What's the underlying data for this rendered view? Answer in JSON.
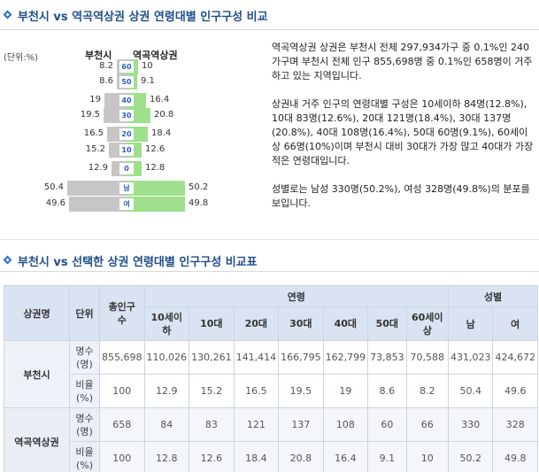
{
  "section1": {
    "title": "부천시 vs 역곡역상권 상권 연령대별 인구구성 비교"
  },
  "pyramid": {
    "unit": "(단위:%)",
    "left_header": "부천시",
    "right_header": "역곡역상권",
    "rows": [
      {
        "age": "60",
        "left": "8.2",
        "right": "10",
        "left_pct": 8.2,
        "right_pct": 10
      },
      {
        "age": "50",
        "left": "8.6",
        "right": "9.1",
        "left_pct": 8.6,
        "right_pct": 9.1
      },
      {
        "age": "40",
        "left": "19",
        "right": "16.4",
        "left_pct": 19,
        "right_pct": 16.4
      },
      {
        "age": "30",
        "left": "19.5",
        "right": "20.8",
        "left_pct": 19.5,
        "right_pct": 20.8
      },
      {
        "age": "20",
        "left": "16.5",
        "right": "18.4",
        "left_pct": 16.5,
        "right_pct": 18.4
      },
      {
        "age": "10",
        "left": "15.2",
        "right": "12.6",
        "left_pct": 15.2,
        "right_pct": 12.6
      },
      {
        "age": "0",
        "left": "12.9",
        "right": "12.8",
        "left_pct": 12.9,
        "right_pct": 12.8
      },
      {
        "age": "남",
        "left": "50.4",
        "right": "50.2",
        "left_pct": 50.4,
        "right_pct": 50.2
      },
      {
        "age": "여",
        "left": "49.6",
        "right": "49.8",
        "left_pct": 49.6,
        "right_pct": 49.8
      }
    ]
  },
  "description": {
    "p1": "역곡역상권 상권은 부천시 전체 297,934가구 중 0.1%인 240가구며 부천시 전체 인구 855,698명 중 0.1%인 658명이 거주하고 있는 지역입니다.",
    "p2": "상권내 거주 인구의 연령대별 구성은 10세이하 84명(12.8%), 10대 83명(12.6%), 20대 121명(18.4%), 30대 137명(20.8%), 40대 108명(16.4%), 50대 60명(9.1%), 60세이상 66명(10%)이며 부천시 대비 30대가 가장 많고 40대가 가장 적은 연령대입니다.",
    "p3": "성별로는 남성 330명(50.2%), 여성 328명(49.8%)의 분포를 보입니다."
  },
  "section2": {
    "title": "부천시 vs 선택한 상권 연령대별 인구구성 비교표"
  },
  "table": {
    "h_area": "상권명",
    "h_unit": "단위",
    "h_total": "총인구수",
    "h_age": "연령",
    "h_gender": "성별",
    "age_cols": [
      "10세이하",
      "10대",
      "20대",
      "30대",
      "40대",
      "50대",
      "60세이상"
    ],
    "gender_cols": [
      "남",
      "여"
    ],
    "rows": [
      {
        "area": "부천시",
        "unit": "명수(명)",
        "values": [
          "855,698",
          "110,026",
          "130,261",
          "141,414",
          "166,795",
          "162,799",
          "73,853",
          "70,588",
          "431,023",
          "424,672"
        ]
      },
      {
        "area": "",
        "unit": "비율(%)",
        "values": [
          "100",
          "12.9",
          "15.2",
          "16.5",
          "19.5",
          "19",
          "8.6",
          "8.2",
          "50.4",
          "49.6"
        ]
      },
      {
        "area": "역곡역상권",
        "unit": "명수(명)",
        "values": [
          "658",
          "84",
          "83",
          "121",
          "137",
          "108",
          "60",
          "66",
          "330",
          "328"
        ]
      },
      {
        "area": "",
        "unit": "비율(%)",
        "values": [
          "100",
          "12.8",
          "12.6",
          "18.4",
          "20.8",
          "16.4",
          "9.1",
          "10",
          "50.2",
          "49.8"
        ]
      }
    ]
  },
  "colors": {
    "title": "#1f4e8c",
    "left_bar": "#c6c6c6",
    "right_bar": "#9ee08c",
    "header_bg": "#d9e3f2"
  }
}
